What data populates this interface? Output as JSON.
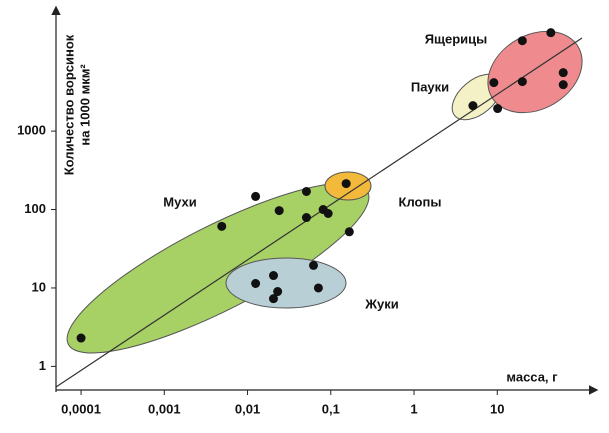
{
  "chart_data": {
    "type": "scatter",
    "ylabel": [
      "Количество ворсинок",
      "на 1000 мкм²"
    ],
    "xlabel": "масса, г",
    "xscale": "log",
    "yscale": "log",
    "xlim": [
      5e-05,
      130
    ],
    "ylim": [
      0.5,
      35000
    ],
    "xticks": [
      {
        "value": 0.0001,
        "label": "0,0001"
      },
      {
        "value": 0.001,
        "label": "0,001"
      },
      {
        "value": 0.01,
        "label": "0,01"
      },
      {
        "value": 0.1,
        "label": "0,1"
      },
      1,
      10
    ],
    "yticks": [
      1,
      10,
      100,
      1000
    ],
    "series": [
      {
        "name": "Мухи",
        "color": "#111111",
        "x": [
          0.0001,
          0.0049,
          0.0125,
          0.024,
          0.051,
          0.051,
          0.081,
          0.093,
          0.167
        ],
        "values": [
          2.3,
          61,
          147,
          97,
          170,
          79,
          100,
          89,
          52
        ]
      },
      {
        "name": "Клопы",
        "color": "#111111",
        "x": [
          0.153
        ],
        "values": [
          214
        ]
      },
      {
        "name": "Жуки",
        "color": "#111111",
        "x": [
          0.0125,
          0.0205,
          0.023,
          0.0205,
          0.062,
          0.071
        ],
        "values": [
          11.4,
          14.4,
          9.0,
          7.3,
          19.4,
          10
        ]
      },
      {
        "name": "Пауки",
        "color": "#111111",
        "x": [
          5.1,
          9.1
        ],
        "values": [
          2110,
          4150
        ]
      },
      {
        "name": "Ящерицы",
        "color": "#111111",
        "x": [
          20,
          44,
          20,
          10.1,
          62,
          62
        ],
        "values": [
          14200,
          18000,
          4280,
          1940,
          5560,
          3910
        ]
      }
    ]
  }
}
